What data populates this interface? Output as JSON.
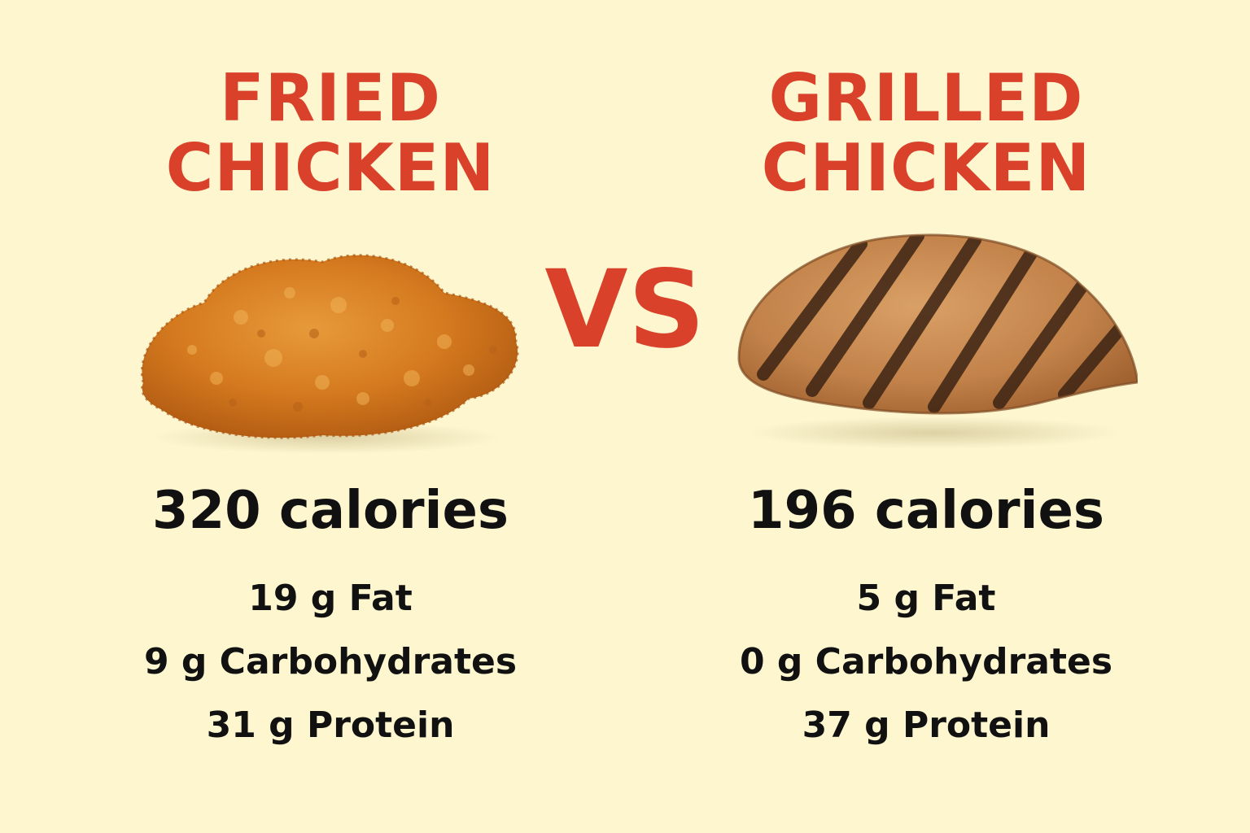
{
  "left": {
    "title_line1": "FRIED",
    "title_line2": "CHICKEN",
    "calories": "320 calories",
    "fat": "19 g Fat",
    "carbs": "9 g Carbohydrates",
    "protein": "31 g Protein",
    "image_icon": "fried-chicken-icon"
  },
  "vs": "VS",
  "right": {
    "title_line1": "GRILLED",
    "title_line2": "CHICKEN",
    "calories": "196 calories",
    "fat": "5 g Fat",
    "carbs": "0 g Carbohydrates",
    "protein": "37 g Protein",
    "image_icon": "grilled-chicken-icon"
  },
  "colors": {
    "background": "#fdf6cf",
    "accent": "#d9412b",
    "text": "#111111"
  }
}
